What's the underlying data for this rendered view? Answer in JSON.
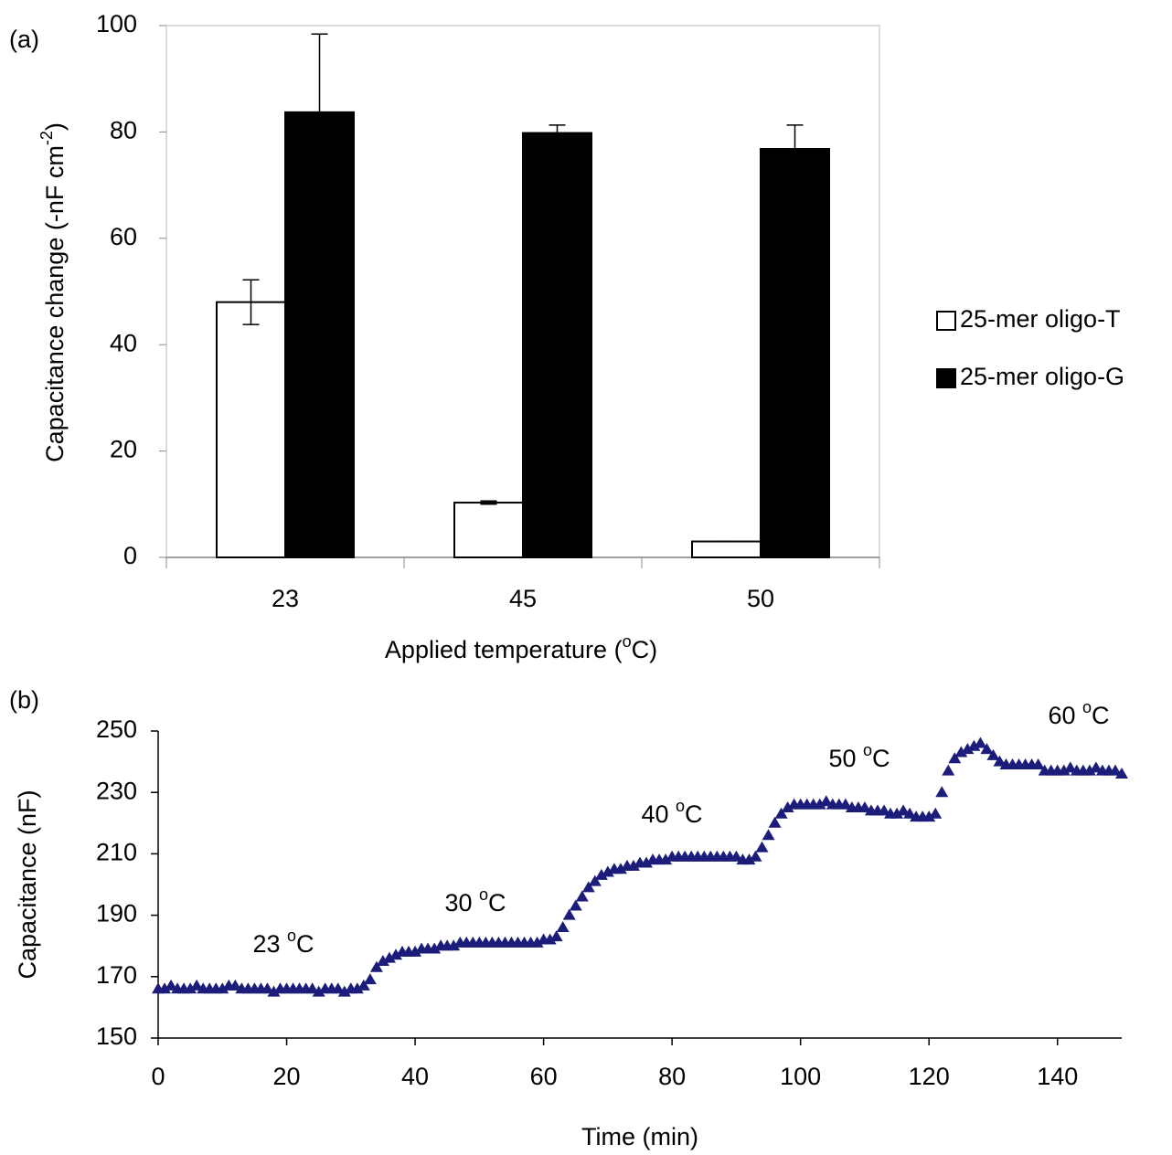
{
  "chart_data": [
    {
      "type": "bar",
      "panel_label": "(a)",
      "ylabel": [
        "Capacitance change (-nF cm",
        "-2",
        ")"
      ],
      "xlabel": [
        "Applied temperature (",
        "o",
        "C)"
      ],
      "categories": [
        "23",
        "45",
        "50"
      ],
      "series": [
        {
          "name": "25-mer oligo-T",
          "color": "#ffffff",
          "values": [
            48,
            10.3,
            3
          ],
          "errors": [
            4.2,
            0.3,
            0
          ]
        },
        {
          "name": "25-mer oligo-G",
          "color": "#000000",
          "values": [
            83.7,
            79.8,
            76.8
          ],
          "errors": [
            14.7,
            1.5,
            4.5
          ]
        }
      ],
      "ylim": [
        0,
        100
      ],
      "yticks": [
        0,
        20,
        40,
        60,
        80,
        100
      ],
      "legend": "right"
    },
    {
      "type": "scatter",
      "panel_label": "(b)",
      "ylabel": "Capacitance (nF)",
      "xlabel": "Time (min)",
      "annotations": [
        [
          "23 ",
          "o",
          "C"
        ],
        [
          "30 ",
          "o",
          "C"
        ],
        [
          "40 ",
          "o",
          "C"
        ],
        [
          "50 ",
          "o",
          "C"
        ],
        [
          "60 ",
          "o",
          "C"
        ]
      ],
      "x": [
        0,
        1,
        2,
        3,
        4,
        5,
        6,
        7,
        8,
        9,
        10,
        11,
        12,
        13,
        14,
        15,
        16,
        17,
        18,
        19,
        20,
        21,
        22,
        23,
        24,
        25,
        26,
        27,
        28,
        29,
        30,
        31,
        32,
        33,
        34,
        35,
        36,
        37,
        38,
        39,
        40,
        41,
        42,
        43,
        44,
        45,
        46,
        47,
        48,
        49,
        50,
        51,
        52,
        53,
        54,
        55,
        56,
        57,
        58,
        59,
        60,
        61,
        62,
        63,
        64,
        65,
        66,
        67,
        68,
        69,
        70,
        71,
        72,
        73,
        74,
        75,
        76,
        77,
        78,
        79,
        80,
        81,
        82,
        83,
        84,
        85,
        86,
        87,
        88,
        89,
        90,
        91,
        92,
        93,
        94,
        95,
        96,
        97,
        98,
        99,
        100,
        101,
        102,
        103,
        104,
        105,
        106,
        107,
        108,
        109,
        110,
        111,
        112,
        113,
        114,
        115,
        116,
        117,
        118,
        119,
        120,
        121,
        122,
        123,
        124,
        125,
        126,
        127,
        128,
        129,
        130,
        131,
        132,
        133,
        134,
        135,
        136,
        137,
        138,
        139,
        140,
        141,
        142,
        143,
        144,
        145,
        146,
        147,
        148,
        149,
        150
      ],
      "series": [
        {
          "color": "#1c1c7a",
          "values": [
            166,
            166,
            167,
            166,
            166,
            166,
            167,
            166,
            166,
            166,
            166,
            167,
            167,
            166,
            166,
            166,
            166,
            166,
            165,
            166,
            166,
            166,
            166,
            166,
            166,
            165,
            166,
            166,
            166,
            165,
            166,
            166,
            167,
            169,
            173,
            175,
            176,
            177,
            178,
            178,
            178,
            179,
            179,
            179,
            180,
            180,
            180,
            181,
            181,
            181,
            181,
            181,
            181,
            181,
            181,
            181,
            181,
            181,
            181,
            181,
            182,
            182,
            183,
            186,
            190,
            193,
            196,
            199,
            201,
            203,
            204,
            205,
            205,
            206,
            206,
            207,
            207,
            208,
            208,
            208,
            209,
            209,
            209,
            209,
            209,
            209,
            209,
            209,
            209,
            209,
            209,
            208,
            208,
            209,
            212,
            216,
            220,
            223,
            225,
            226,
            226,
            226,
            226,
            226,
            227,
            226,
            226,
            226,
            225,
            225,
            225,
            224,
            224,
            224,
            223,
            223,
            224,
            223,
            222,
            222,
            222,
            223,
            230,
            237,
            241,
            243,
            244,
            245,
            246,
            244,
            242,
            240,
            239,
            239,
            239,
            239,
            239,
            239,
            237,
            237,
            237,
            237,
            238,
            237,
            237,
            237,
            238,
            237,
            237,
            237,
            236
          ]
        }
      ],
      "xlim": [
        0,
        150
      ],
      "xticks": [
        0,
        20,
        40,
        60,
        80,
        100,
        120,
        140
      ],
      "ylim": [
        150,
        250
      ],
      "yticks": [
        150,
        170,
        190,
        210,
        230,
        250
      ]
    }
  ]
}
